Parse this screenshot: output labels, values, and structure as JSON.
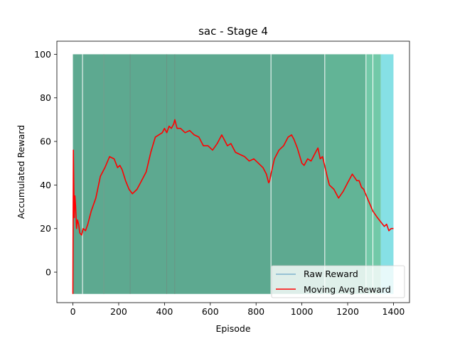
{
  "chart_data": {
    "type": "line",
    "title": "sac - Stage 4",
    "xlabel": "Episode",
    "ylabel": "Accumulated Reward",
    "xlim": [
      -70,
      1470
    ],
    "ylim": [
      -14,
      106
    ],
    "xticks": [
      0,
      200,
      400,
      600,
      800,
      1000,
      1200,
      1400
    ],
    "yticks": [
      0,
      20,
      40,
      60,
      80,
      100
    ],
    "grid": false,
    "legend_position": "bottom-right",
    "raw_reward": {
      "name": "Raw Reward",
      "color": "#1f77b4",
      "alpha": 0.5,
      "description_values": [
        -10,
        100
      ],
      "x_range": [
        0,
        1400
      ],
      "dense_regions": [
        {
          "x": [
            0,
            1100
          ],
          "color": "#5da990"
        },
        {
          "x": [
            1100,
            1280
          ],
          "color": "#62b496"
        },
        {
          "x": [
            1280,
            1345
          ],
          "color": "#72c9a8"
        },
        {
          "x": [
            1345,
            1400
          ],
          "color": "#86e0e5"
        }
      ]
    },
    "series": [
      {
        "name": "Moving Avg Reward",
        "color": "#ff0000",
        "x": [
          0,
          2,
          4,
          6,
          9,
          12,
          16,
          20,
          25,
          30,
          38,
          45,
          55,
          65,
          80,
          100,
          120,
          140,
          160,
          180,
          195,
          205,
          215,
          230,
          245,
          260,
          280,
          300,
          320,
          340,
          360,
          375,
          390,
          400,
          410,
          420,
          430,
          440,
          445,
          455,
          470,
          490,
          510,
          530,
          550,
          570,
          590,
          610,
          630,
          650,
          660,
          675,
          690,
          710,
          730,
          750,
          770,
          790,
          810,
          830,
          845,
          855,
          860,
          865,
          880,
          900,
          920,
          940,
          955,
          965,
          980,
          1000,
          1010,
          1025,
          1040,
          1060,
          1070,
          1080,
          1090,
          1095,
          1110,
          1120,
          1140,
          1160,
          1180,
          1200,
          1220,
          1240,
          1250,
          1260,
          1270,
          1290,
          1310,
          1330,
          1345,
          1360,
          1370,
          1380,
          1390,
          1400
        ],
        "y": [
          -10,
          56,
          40,
          25,
          35,
          30,
          20,
          24,
          22,
          18,
          17,
          20,
          19,
          22,
          28,
          34,
          44,
          48,
          53,
          52,
          48,
          49,
          47,
          42,
          38,
          36,
          38,
          42,
          46,
          55,
          62,
          63,
          64,
          66,
          64,
          67,
          66,
          68,
          70,
          66,
          66,
          64,
          65,
          63,
          62,
          58,
          58,
          56,
          59,
          63,
          61,
          58,
          59,
          55,
          54,
          53,
          51,
          52,
          50,
          48,
          45,
          41,
          42,
          45,
          52,
          56,
          58,
          62,
          63,
          61,
          57,
          50,
          49,
          52,
          51,
          55,
          57,
          52,
          53,
          51,
          44,
          40,
          38,
          34,
          37,
          41,
          45,
          42,
          42,
          39,
          38,
          33,
          28,
          25,
          23,
          21,
          22,
          19,
          20,
          20
        ]
      }
    ],
    "legend": [
      "Raw Reward",
      "Moving Avg Reward"
    ]
  }
}
